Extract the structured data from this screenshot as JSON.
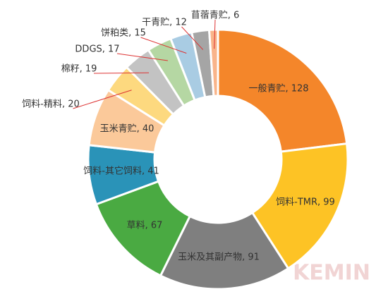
{
  "chart_data": {
    "type": "pie",
    "categories": [
      "一般青贮",
      "饲料-TMR",
      "玉米及其副产物",
      "草料",
      "饲料-其它饲料",
      "玉米青贮",
      "饲料-精料",
      "棉籽",
      "DDGS",
      "饼粕类",
      "干青贮",
      "苜蓿青贮"
    ],
    "values": [
      128,
      99,
      91,
      67,
      41,
      40,
      20,
      19,
      17,
      15,
      12,
      6
    ],
    "value_labels": [
      "一般青贮, 128",
      "饲料-TMR, 99",
      "玉米及其副产物, 91",
      "草料, 67",
      "饲料-其它饲料, 41",
      "玉米青贮, 40",
      "饲料-精料, 20",
      "棉籽, 19",
      "DDGS, 17",
      "饼粕类, 15",
      "干青贮, 12",
      "苜蓿青贮, 6"
    ],
    "colors": [
      "#F4862A",
      "#FDC325",
      "#7F7F7F",
      "#4AAA42",
      "#2A93B8",
      "#FBC99A",
      "#FDD97F",
      "#C3C3C3",
      "#B5D7A3",
      "#A9CCE3",
      "#A5A5A5",
      "#F9B48A"
    ],
    "donut": true
  },
  "watermark": "KEMIN"
}
